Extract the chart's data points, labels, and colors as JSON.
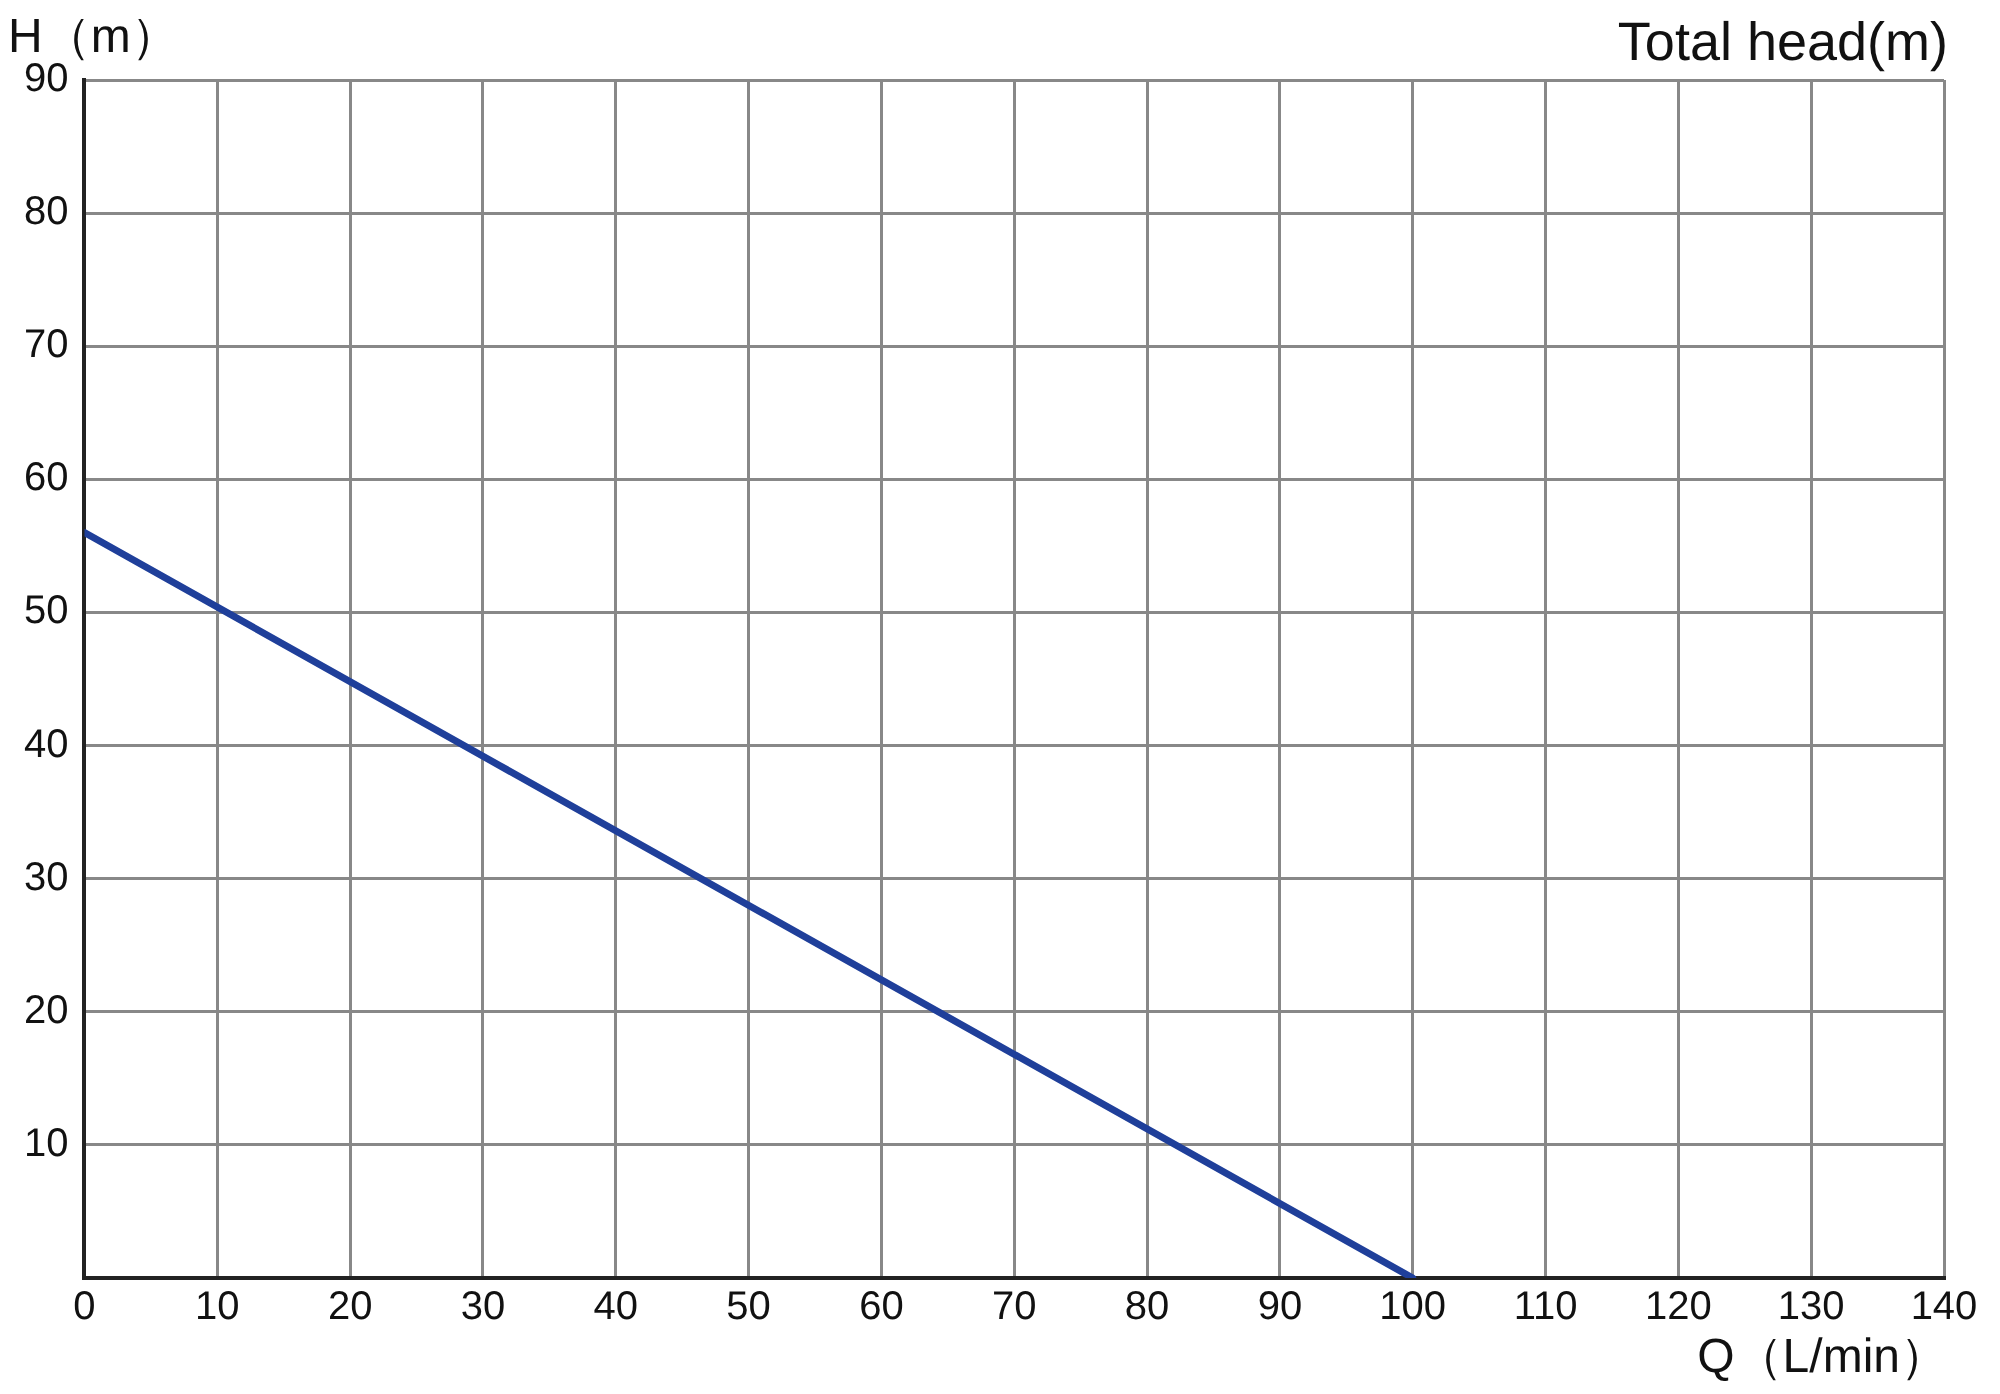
{
  "chart_data": {
    "type": "line",
    "title": "Total head(m)",
    "xlabel": "Q（L/min）",
    "ylabel": "H（m）",
    "x": [
      0,
      100
    ],
    "series": [
      {
        "color": "#1f3f9a",
        "values": [
          56,
          0
        ]
      }
    ],
    "xlim": [
      0,
      140
    ],
    "xticks": [
      0,
      10,
      20,
      30,
      40,
      50,
      60,
      70,
      80,
      90,
      100,
      110,
      120,
      130,
      140
    ],
    "ylim": [
      0,
      90
    ],
    "yticks": [
      {
        "value": 0,
        "label": null
      },
      10,
      20,
      30,
      40,
      50,
      60,
      70,
      80,
      90
    ],
    "grid": true,
    "legend": false
  }
}
